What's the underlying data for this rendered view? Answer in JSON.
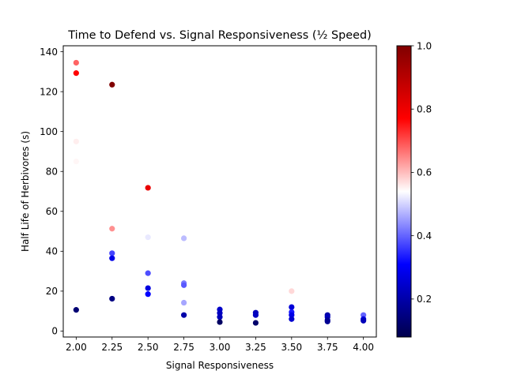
{
  "chart_data": {
    "type": "scatter",
    "title": "Time to Defend vs. Signal Responsiveness (½ Speed)",
    "xlabel": "Signal Responsiveness",
    "ylabel": "Half Life of Herbivores (s)",
    "xlim": [
      1.91,
      4.09
    ],
    "ylim": [
      -3,
      143
    ],
    "xticks": [
      "2.00",
      "2.25",
      "2.50",
      "2.75",
      "3.00",
      "3.25",
      "3.50",
      "3.75",
      "4.00"
    ],
    "xtick_values": [
      2.0,
      2.25,
      2.5,
      2.75,
      3.0,
      3.25,
      3.5,
      3.75,
      4.0
    ],
    "yticks": [
      "0",
      "20",
      "40",
      "60",
      "80",
      "100",
      "120",
      "140"
    ],
    "ytick_values": [
      0,
      20,
      40,
      60,
      80,
      100,
      120,
      140
    ],
    "grid": false,
    "colormap": "seismic",
    "colorbar": {
      "range": [
        0.08,
        1.0
      ],
      "ticks": [
        "0.2",
        "0.4",
        "0.6",
        "0.8",
        "1.0"
      ],
      "tick_values": [
        0.2,
        0.4,
        0.6,
        0.8,
        1.0
      ]
    },
    "points": [
      {
        "x": 2.0,
        "y": 134.5,
        "c": 0.68
      },
      {
        "x": 2.0,
        "y": 129.3,
        "c": 0.77
      },
      {
        "x": 2.0,
        "y": 95.0,
        "c": 0.555
      },
      {
        "x": 2.0,
        "y": 85.0,
        "c": 0.548
      },
      {
        "x": 2.0,
        "y": 10.6,
        "c": 0.13
      },
      {
        "x": 2.25,
        "y": 123.5,
        "c": 1.0
      },
      {
        "x": 2.25,
        "y": 51.3,
        "c": 0.64
      },
      {
        "x": 2.25,
        "y": 39.0,
        "c": 0.37
      },
      {
        "x": 2.25,
        "y": 36.5,
        "c": 0.28
      },
      {
        "x": 2.25,
        "y": 16.2,
        "c": 0.15
      },
      {
        "x": 2.5,
        "y": 71.8,
        "c": 0.81
      },
      {
        "x": 2.5,
        "y": 47.0,
        "c": 0.52
      },
      {
        "x": 2.5,
        "y": 29.0,
        "c": 0.38
      },
      {
        "x": 2.5,
        "y": 21.5,
        "c": 0.27
      },
      {
        "x": 2.5,
        "y": 18.5,
        "c": 0.31
      },
      {
        "x": 2.75,
        "y": 46.5,
        "c": 0.48
      },
      {
        "x": 2.75,
        "y": 24.0,
        "c": 0.42
      },
      {
        "x": 2.75,
        "y": 23.0,
        "c": 0.39
      },
      {
        "x": 2.75,
        "y": 14.2,
        "c": 0.46
      },
      {
        "x": 2.75,
        "y": 8.0,
        "c": 0.2
      },
      {
        "x": 3.0,
        "y": 10.8,
        "c": 0.24
      },
      {
        "x": 3.0,
        "y": 9.0,
        "c": 0.23
      },
      {
        "x": 3.0,
        "y": 7.0,
        "c": 0.22
      },
      {
        "x": 3.0,
        "y": 4.5,
        "c": 0.11
      },
      {
        "x": 3.25,
        "y": 9.2,
        "c": 0.22
      },
      {
        "x": 3.25,
        "y": 8.0,
        "c": 0.23
      },
      {
        "x": 3.25,
        "y": 4.1,
        "c": 0.12
      },
      {
        "x": 3.5,
        "y": 20.0,
        "c": 0.575
      },
      {
        "x": 3.5,
        "y": 12.0,
        "c": 0.26
      },
      {
        "x": 3.5,
        "y": 9.5,
        "c": 0.33
      },
      {
        "x": 3.5,
        "y": 8.0,
        "c": 0.28
      },
      {
        "x": 3.5,
        "y": 6.0,
        "c": 0.25
      },
      {
        "x": 3.75,
        "y": 8.0,
        "c": 0.2
      },
      {
        "x": 3.75,
        "y": 7.0,
        "c": 0.22
      },
      {
        "x": 3.75,
        "y": 5.5,
        "c": 0.18
      },
      {
        "x": 3.75,
        "y": 4.8,
        "c": 0.17
      },
      {
        "x": 4.0,
        "y": 8.0,
        "c": 0.4
      },
      {
        "x": 4.0,
        "y": 6.0,
        "c": 0.27
      },
      {
        "x": 4.0,
        "y": 5.2,
        "c": 0.22
      }
    ]
  }
}
